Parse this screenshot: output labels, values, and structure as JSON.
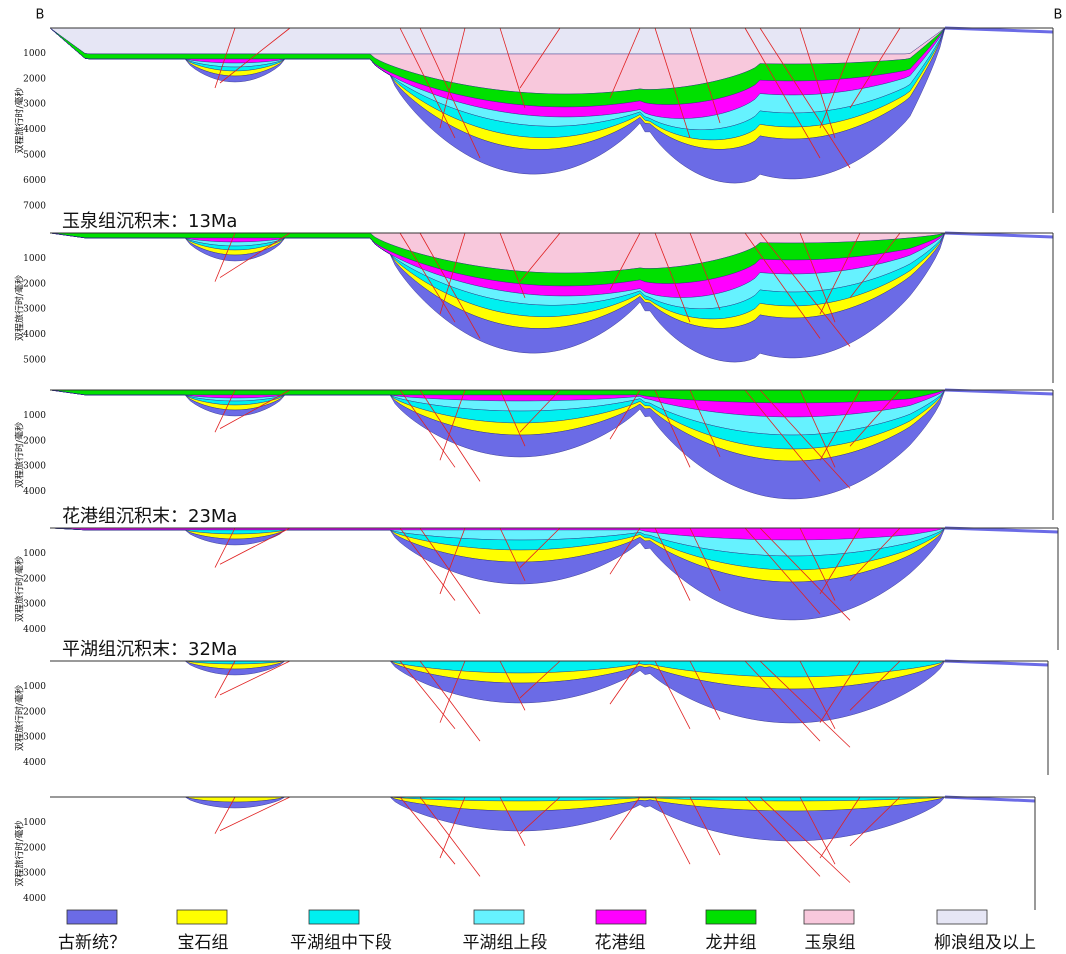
{
  "header": {
    "left": "B",
    "right": "B"
  },
  "y_axis_label": "双程旅行时/毫秒",
  "panels": [
    {
      "ticks": [
        1000,
        2000,
        3000,
        4000,
        5000,
        6000,
        7000
      ]
    },
    {
      "label": "玉泉组沉积末：13Ma",
      "ticks": [
        1000,
        2000,
        3000,
        4000,
        5000
      ]
    },
    {
      "ticks": [
        1000,
        2000,
        3000,
        4000
      ]
    },
    {
      "label": "花港组沉积末：23Ma",
      "ticks": [
        1000,
        2000,
        3000,
        4000
      ]
    },
    {
      "label": "平湖组沉积末：32Ma",
      "ticks": [
        1000,
        2000,
        3000,
        4000
      ]
    },
    {
      "ticks": [
        1000,
        2000,
        3000,
        4000
      ]
    }
  ],
  "legend": [
    {
      "name": "古新统？",
      "color": "#6b6be6"
    },
    {
      "name": "宝石组",
      "color": "#ffff00"
    },
    {
      "name": "平湖组中下段",
      "color": "#00f0f0"
    },
    {
      "name": "平湖组上段",
      "color": "#66f2ff"
    },
    {
      "name": "花港组",
      "color": "#ff00ff"
    },
    {
      "name": "龙井组",
      "color": "#00e000"
    },
    {
      "name": "玉泉组",
      "color": "#f8c8dc"
    },
    {
      "name": "柳浪组及以上",
      "color": "#e6e6f5"
    }
  ]
}
